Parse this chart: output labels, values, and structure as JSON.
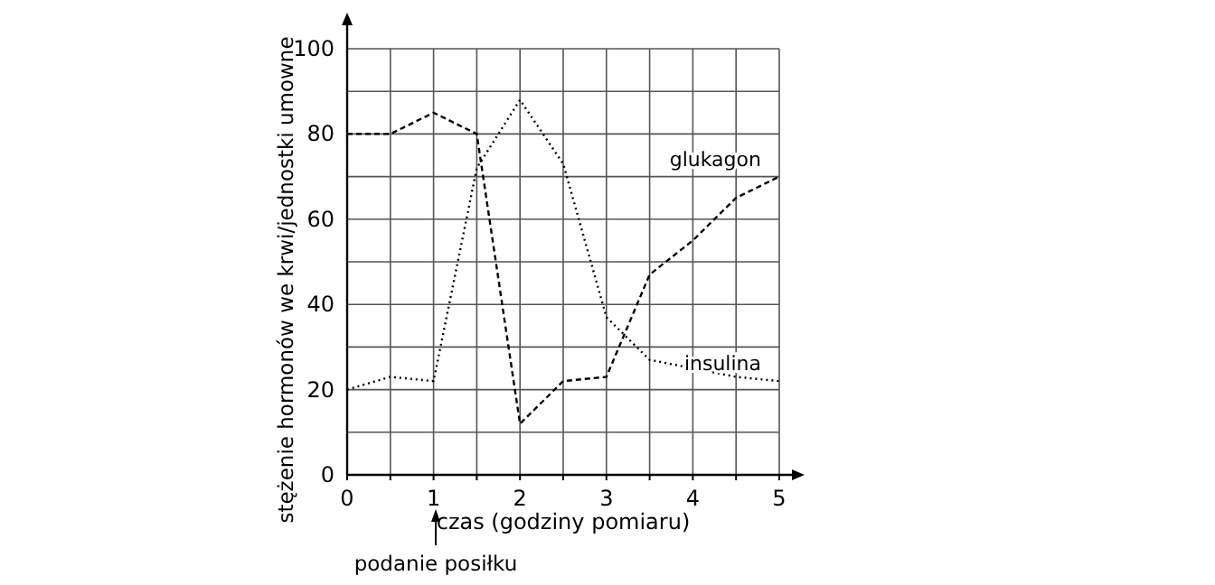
{
  "chart_data": {
    "type": "line",
    "xlabel": "czas (godziny pomiaru)",
    "ylabel": "stężenie hormonów we krwi/jednostki umowne",
    "x": [
      0,
      0.5,
      1,
      1.5,
      2,
      2.5,
      3,
      3.5,
      4,
      4.5,
      5
    ],
    "series": [
      {
        "name": "glukagon",
        "color": "#000000",
        "line_style": "dashed",
        "values": [
          80,
          80,
          85,
          80,
          12,
          22,
          23,
          47,
          55,
          65,
          70
        ]
      },
      {
        "name": "insulina",
        "color": "#000000",
        "line_style": "dotted",
        "values": [
          20,
          23,
          22,
          72,
          88,
          73,
          37,
          27,
          25,
          23,
          22
        ]
      }
    ],
    "xlim": [
      0,
      5
    ],
    "ylim": [
      0,
      100
    ],
    "xticks": [
      0,
      {
        "value": 0.5,
        "label": null
      },
      1,
      {
        "value": 1.5,
        "label": null
      },
      2,
      {
        "value": 2.5,
        "label": null
      },
      3,
      {
        "value": 3.5,
        "label": null
      },
      4,
      {
        "value": 4.5,
        "label": null
      },
      5
    ],
    "yticks": [
      0,
      {
        "value": 10,
        "label": null
      },
      20,
      {
        "value": 30,
        "label": null
      },
      40,
      {
        "value": 50,
        "label": null
      },
      60,
      {
        "value": 70,
        "label": null
      },
      80,
      {
        "value": 90,
        "label": null
      },
      100
    ],
    "grid": true,
    "marker": "none",
    "annotations": [
      "podanie posiłku"
    ]
  }
}
